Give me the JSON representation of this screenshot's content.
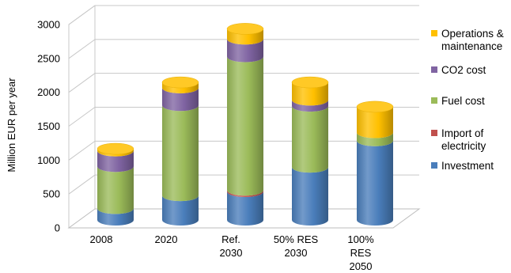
{
  "chart_data": {
    "type": "bar",
    "stacked": true,
    "style": "3d-cylinder",
    "title": "",
    "xlabel": "",
    "ylabel": "Million EUR per year",
    "ylim": [
      0,
      3000
    ],
    "yticks": [
      0,
      500,
      1000,
      1500,
      2000,
      2500,
      3000
    ],
    "grid": true,
    "legend_position": "right",
    "categories": [
      [
        "2008"
      ],
      [
        "2020"
      ],
      [
        "Ref.",
        "2030"
      ],
      [
        "50% RES",
        "2030"
      ],
      [
        "100%",
        "RES",
        "2050"
      ]
    ],
    "series": [
      {
        "name": [
          "Investment"
        ],
        "color": "#4A7EBB",
        "values": [
          170,
          360,
          420,
          780,
          1170
        ]
      },
      {
        "name": [
          "Import of",
          "electricity"
        ],
        "color": "#C0504D",
        "values": [
          0,
          0,
          20,
          0,
          0
        ]
      },
      {
        "name": [
          "Fuel cost"
        ],
        "color": "#9BBB59",
        "values": [
          620,
          1330,
          1970,
          900,
          120
        ]
      },
      {
        "name": [
          "CO2 cost"
        ],
        "color": "#8064A2",
        "values": [
          230,
          260,
          260,
          90,
          0
        ]
      },
      {
        "name": [
          "Operations &",
          "maintenance"
        ],
        "color": "#FFC000",
        "values": [
          30,
          80,
          150,
          260,
          380
        ]
      }
    ]
  }
}
